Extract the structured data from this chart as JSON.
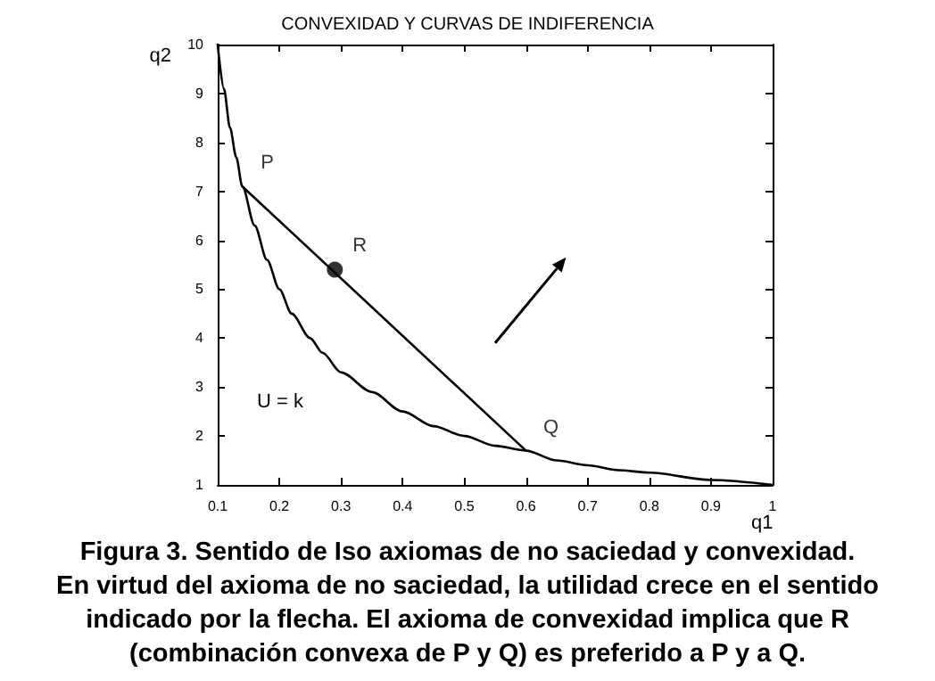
{
  "chart_data": {
    "type": "line",
    "title": "CONVEXIDAD Y CURVAS DE INDIFERENCIA",
    "xlabel": "q1",
    "ylabel": "q2",
    "xlim": [
      0.1,
      1
    ],
    "xticks": [
      0.1,
      0.2,
      0.3,
      0.4,
      0.5,
      0.6,
      0.7,
      0.8,
      0.9,
      1
    ],
    "ylim": [
      1,
      10
    ],
    "yticks": [
      1,
      2,
      3,
      4,
      5,
      6,
      7,
      8,
      9,
      10
    ],
    "grid": false,
    "marker": "none",
    "line_style": "solid",
    "series": [
      {
        "type": "line",
        "color": "#000000",
        "x": [
          0.1,
          0.11,
          0.12,
          0.13,
          0.14,
          0.16,
          0.18,
          0.2,
          0.22,
          0.25,
          0.27,
          0.3,
          0.35,
          0.4,
          0.45,
          0.5,
          0.55,
          0.6,
          0.65,
          0.7,
          0.75,
          0.8,
          0.9,
          1
        ],
        "values": [
          10,
          9.1,
          8.3,
          7.7,
          7.1,
          6.3,
          5.6,
          5,
          4.5,
          4,
          3.7,
          3.3,
          2.9,
          2.5,
          2.2,
          2,
          1.8,
          1.7,
          1.5,
          1.4,
          1.3,
          1.25,
          1.1,
          1
        ]
      },
      {
        "type": "line",
        "color": "#000000",
        "x": [
          0.14,
          0.6
        ],
        "values": [
          7.1,
          1.7
        ]
      },
      {
        "type": "scatter",
        "color": "#000000",
        "marker": "circle",
        "x": [
          0.29
        ],
        "values": [
          5.4
        ]
      }
    ],
    "annotations": [
      {
        "text": "P",
        "x": 0.14,
        "y": 7.1
      },
      {
        "text": "R",
        "x": 0.29,
        "y": 5.4
      },
      {
        "text": "Q",
        "x": 0.6,
        "y": 1.7
      },
      "U = k",
      "Figura 3. Sentido de Iso axiomas de no saciedad y convexidad.\nEn virtud del axioma de no saciedad, la utilidad crece en el sentido\nindicado por la flecha. El axioma de convexidad implica que R\n(combinación convexa de P y Q) es preferido a P y a Q."
    ]
  }
}
